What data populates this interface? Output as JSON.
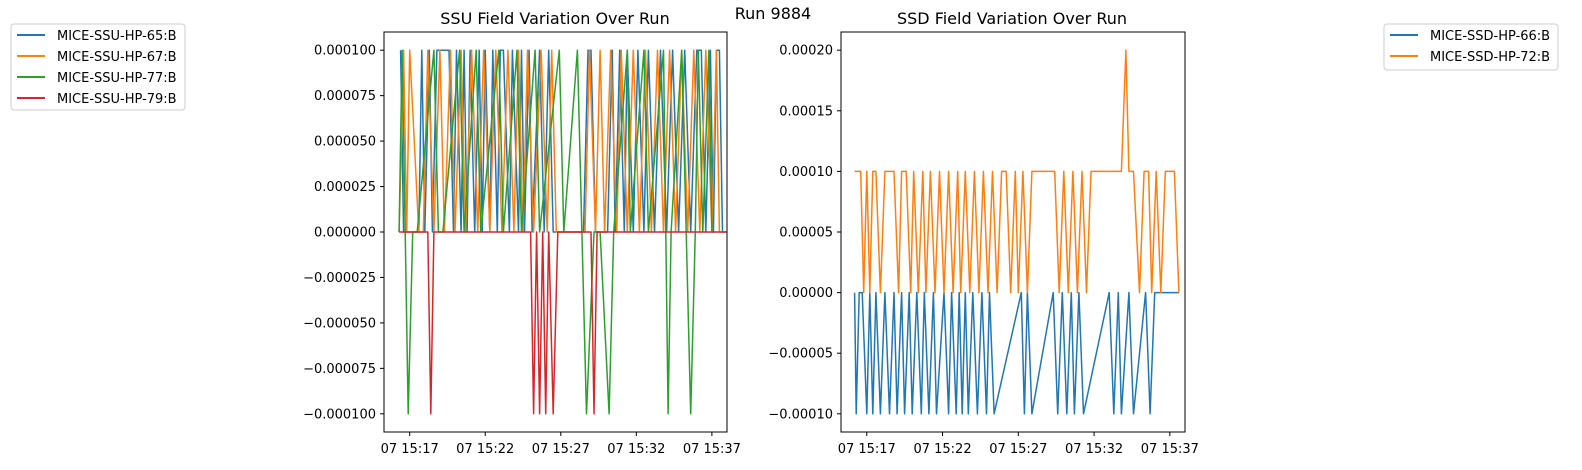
{
  "suptitle": "Run 9884",
  "chart_data": [
    {
      "type": "line",
      "title": "SSU Field Variation Over Run",
      "xlabel": "",
      "ylabel": "",
      "x_ticks": [
        "07 15:17",
        "07 15:22",
        "07 15:27",
        "07 15:32",
        "07 15:37"
      ],
      "x_tick_minutes": [
        17,
        22,
        27,
        32,
        37
      ],
      "xlim_minutes": [
        15.3,
        38.0
      ],
      "y_ticks": [
        "0.000100",
        "0.000075",
        "0.000050",
        "0.000025",
        "0.000000",
        "−0.000025",
        "−0.000050",
        "−0.000075",
        "−0.000100"
      ],
      "y_tick_values": [
        0.0001,
        7.5e-05,
        5e-05,
        2.5e-05,
        0,
        -2.5e-05,
        -5e-05,
        -7.5e-05,
        -0.0001
      ],
      "ylim": [
        -0.00011,
        0.00011
      ],
      "legend_position": "outside-left",
      "series": [
        {
          "name": "MICE-SSU-HP-65:B",
          "color": "#1f77b4",
          "x": [
            16.4,
            16.6,
            17.6,
            17.8,
            18.0,
            18.3,
            18.5,
            18.8,
            19.2,
            19.4,
            19.6,
            19.9,
            20.1,
            20.4,
            20.6,
            20.8,
            21.0,
            21.3,
            21.6,
            21.8,
            22.0,
            22.3,
            22.5,
            22.8,
            23.0,
            23.2,
            23.6,
            23.8,
            24.2,
            24.4,
            24.6,
            24.9,
            25.1,
            25.6,
            25.9,
            26.2,
            26.5,
            28.5,
            28.8,
            29.0,
            29.3,
            30.1,
            30.4,
            30.6,
            30.9,
            31.2,
            31.4,
            31.8,
            32.1,
            32.5,
            32.8,
            33.2,
            33.6,
            34.0,
            34.4,
            34.8,
            35.2,
            35.6,
            36.0,
            36.3,
            36.6,
            36.9,
            37.1,
            37.3,
            37.5,
            37.7,
            37.9
          ],
          "values": [
            0.0001,
            0,
            0,
            0.0001,
            0,
            0.0001,
            0,
            0.0001,
            0.0001,
            0.0001,
            0.0001,
            0,
            0.0001,
            0,
            0.0001,
            0,
            0.0001,
            0,
            0.0001,
            0,
            0.0001,
            0,
            0.0001,
            0,
            0.0001,
            0.0001,
            0,
            0.0001,
            0,
            0.0001,
            0,
            0.0001,
            0,
            0.0001,
            0,
            0.0001,
            0,
            0,
            0.0001,
            0.0001,
            0,
            0,
            0.0001,
            0,
            0.0001,
            0,
            0.0001,
            0,
            0.0001,
            0,
            0.0001,
            0,
            0.0001,
            0,
            0.0001,
            0,
            0.0001,
            0,
            0.0001,
            0.0001,
            0,
            0.0001,
            0,
            0.0001,
            0.0001,
            0,
            0
          ]
        },
        {
          "name": "MICE-SSU-HP-67:B",
          "color": "#ff7f0e",
          "x": [
            16.3,
            16.6,
            16.8,
            17.0,
            17.6,
            17.9,
            18.2,
            18.6,
            19.0,
            19.3,
            19.7,
            20.0,
            20.4,
            20.7,
            21.1,
            21.5,
            21.9,
            22.3,
            22.7,
            23.1,
            23.5,
            23.9,
            24.2,
            24.5,
            24.8,
            25.2,
            25.7,
            26.1,
            26.4,
            26.7,
            27.0,
            27.3,
            27.7,
            28.0,
            28.6,
            28.9,
            29.3,
            29.6,
            29.9,
            30.3,
            30.7,
            31.0,
            31.4,
            31.8,
            32.2,
            32.6,
            33.0,
            33.4,
            33.8,
            34.2,
            34.6,
            35.0,
            35.4,
            35.8,
            36.2,
            36.6,
            37.0,
            37.3,
            37.5,
            37.8
          ],
          "values": [
            0,
            0.0001,
            0,
            0.0001,
            0,
            0,
            0.0001,
            0,
            0.0001,
            0,
            0.0001,
            0,
            0.0001,
            0,
            0.0001,
            0,
            0.0001,
            0,
            0.0001,
            0,
            0.0001,
            0,
            0.0001,
            0,
            0.0001,
            0,
            0.0001,
            0,
            0.0001,
            0,
            0,
            0,
            0,
            0,
            0,
            0.0001,
            0,
            0.0001,
            0,
            0.0001,
            0,
            0.0001,
            0,
            0.0001,
            0,
            0.0001,
            0,
            0.0001,
            0,
            0.0001,
            0,
            0.0001,
            0,
            0.0001,
            0,
            0.0001,
            0,
            0.0001,
            0,
            0
          ]
        },
        {
          "name": "MICE-SSU-HP-77:B",
          "color": "#2ca02c",
          "x": [
            16.3,
            16.5,
            16.7,
            16.9,
            17.2,
            17.5,
            18.6,
            18.9,
            19.2,
            20.3,
            20.6,
            21.4,
            21.7,
            22.9,
            23.2,
            24.1,
            24.4,
            25.3,
            25.6,
            26.9,
            27.2,
            28.1,
            28.4,
            28.7,
            29.2,
            29.6,
            30.2,
            30.5,
            31.4,
            31.6,
            32.5,
            32.8,
            33.8,
            34.1,
            34.3,
            35.0,
            35.3,
            35.6,
            35.9,
            36.1,
            36.4,
            36.8,
            37.0,
            37.2
          ],
          "values": [
            0,
            0.0001,
            0,
            -0.0001,
            0,
            0,
            0.0001,
            0,
            0,
            0.0001,
            0,
            0.0001,
            0,
            0.0001,
            0,
            0.0001,
            0,
            0.0001,
            0,
            0.0001,
            0,
            0.0001,
            0,
            -0.0001,
            0,
            0,
            -0.0001,
            0,
            0.0001,
            0,
            0.0001,
            0,
            0.0001,
            -0.0001,
            0,
            0.0001,
            0,
            -0.0001,
            0,
            0.0001,
            0,
            0.0001,
            0,
            0
          ]
        },
        {
          "name": "MICE-SSU-HP-79:B",
          "color": "#d62728",
          "x": [
            16.3,
            18.2,
            18.4,
            18.6,
            25.0,
            25.2,
            25.4,
            25.6,
            25.8,
            26.0,
            26.2,
            26.5,
            26.8,
            29.0,
            29.2,
            29.4,
            38.0
          ],
          "values": [
            0,
            0,
            -0.0001,
            0,
            0,
            -0.0001,
            0,
            -0.0001,
            0,
            -0.0001,
            0,
            -0.0001,
            0,
            0,
            -0.0001,
            0,
            0
          ]
        }
      ]
    },
    {
      "type": "line",
      "title": "SSD Field Variation Over Run",
      "xlabel": "",
      "ylabel": "",
      "x_ticks": [
        "07 15:17",
        "07 15:22",
        "07 15:27",
        "07 15:32",
        "07 15:37"
      ],
      "x_tick_minutes": [
        17,
        22,
        27,
        32,
        37
      ],
      "xlim_minutes": [
        15.3,
        38.0
      ],
      "y_ticks": [
        "0.00020",
        "0.00015",
        "0.00010",
        "0.00005",
        "0.00000",
        "−0.00005",
        "−0.00010"
      ],
      "y_tick_values": [
        0.0002,
        0.00015,
        0.0001,
        5e-05,
        0,
        -5e-05,
        -0.0001
      ],
      "ylim": [
        -0.000115,
        0.000215
      ],
      "legend_position": "outside-right",
      "series": [
        {
          "name": "MICE-SSD-HP-66:B",
          "color": "#1f77b4",
          "x": [
            16.2,
            16.3,
            16.5,
            16.7,
            17.0,
            17.2,
            17.4,
            17.6,
            17.9,
            18.2,
            18.5,
            18.8,
            19.0,
            19.3,
            19.5,
            19.8,
            20.0,
            20.3,
            20.6,
            20.8,
            21.1,
            21.4,
            21.6,
            22.1,
            22.4,
            22.6,
            22.9,
            23.1,
            23.3,
            23.5,
            23.7,
            24.0,
            24.3,
            24.6,
            24.9,
            25.1,
            25.4,
            27.2,
            27.4,
            27.6,
            27.9,
            29.3,
            29.6,
            29.9,
            30.2,
            30.5,
            30.7,
            31.0,
            31.3,
            33.0,
            33.3,
            33.6,
            33.8,
            34.3,
            34.6,
            35.4,
            35.7,
            36.0,
            37.6
          ],
          "values": [
            0,
            -0.0001,
            0,
            0,
            -0.0001,
            0,
            -0.0001,
            0,
            -0.0001,
            0,
            -0.0001,
            0,
            -0.0001,
            0,
            -0.0001,
            0,
            -0.0001,
            0,
            -0.0001,
            0,
            -0.0001,
            0,
            -0.0001,
            0,
            -0.0001,
            0,
            -0.0001,
            0,
            -0.0001,
            0,
            -0.0001,
            0,
            -0.0001,
            0,
            -0.0001,
            0,
            -0.0001,
            0,
            -0.0001,
            0,
            -0.0001,
            0,
            -0.0001,
            0,
            -0.0001,
            0,
            -0.0001,
            0,
            -0.0001,
            0,
            -0.0001,
            0,
            -0.0001,
            0,
            -0.0001,
            0,
            -0.0001,
            0,
            0
          ]
        },
        {
          "name": "MICE-SSD-HP-72:B",
          "color": "#ff7f0e",
          "x": [
            16.2,
            16.6,
            16.8,
            17.0,
            17.2,
            17.4,
            17.6,
            17.9,
            18.2,
            18.5,
            18.8,
            19.1,
            19.3,
            19.6,
            19.9,
            20.1,
            20.4,
            20.7,
            20.9,
            21.2,
            21.5,
            21.8,
            22.1,
            22.4,
            22.7,
            23.0,
            23.2,
            23.5,
            23.8,
            24.1,
            24.4,
            24.7,
            25.0,
            25.3,
            25.6,
            25.9,
            26.2,
            26.5,
            26.8,
            27.0,
            27.3,
            27.6,
            27.9,
            28.2,
            28.5,
            28.8,
            29.1,
            29.4,
            29.7,
            30.0,
            30.3,
            30.6,
            30.9,
            31.2,
            31.5,
            31.8,
            33.8,
            34.1,
            34.3,
            34.6,
            35.0,
            35.3,
            35.6,
            35.8,
            36.1,
            36.4,
            36.7,
            37.0,
            37.3,
            37.6
          ],
          "values": [
            0.0001,
            0.0001,
            0,
            0.0001,
            0,
            0.0001,
            0.0001,
            0,
            0.0001,
            0.0001,
            0.0001,
            0,
            0.0001,
            0.0001,
            0,
            0.0001,
            0,
            0.0001,
            0,
            0.0001,
            0,
            0.0001,
            0,
            0.0001,
            0,
            0.0001,
            0,
            0.0001,
            0,
            0.0001,
            0,
            0.0001,
            0,
            0.0001,
            0,
            0.0001,
            0.0001,
            0,
            0.0001,
            0,
            0.0001,
            0,
            0.0001,
            0.0001,
            0.0001,
            0.0001,
            0.0001,
            0.0001,
            0,
            0.0001,
            0,
            0.0001,
            0,
            0.0001,
            0,
            0.0001,
            0.0001,
            0.0002,
            0.0001,
            0.0001,
            0,
            0.0001,
            0.0001,
            0,
            0.0001,
            0,
            0.0001,
            0.0001,
            0.0001,
            0
          ]
        }
      ]
    }
  ]
}
